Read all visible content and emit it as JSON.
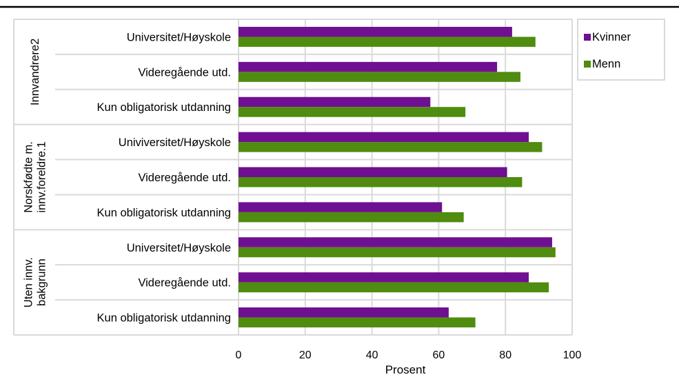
{
  "chart_data": {
    "type": "bar",
    "orientation": "horizontal",
    "title": "",
    "xlabel": "Prosent",
    "ylabel": "",
    "xlim": [
      0,
      100
    ],
    "x_ticks": [
      "0",
      "20",
      "40",
      "60",
      "80",
      "100"
    ],
    "grid": true,
    "legend_position": "top-right",
    "groups": [
      {
        "label": "Innvandrere2",
        "categories": [
          "Universitet/Høyskole",
          "Videregående utd.",
          "Kun obligatorisk utdanning"
        ]
      },
      {
        "label": "Norskfødte m. innv.foreldre.1",
        "label_lines": [
          "Norskfødte m.",
          "innv.foreldre.1"
        ],
        "categories": [
          "Univiversitet/Høyskole",
          "Videregående utd.",
          "Kun obligatorisk utdanning"
        ]
      },
      {
        "label": "Uten innv. bakgrunn",
        "label_lines": [
          "Uten innv.",
          "bakgrunn"
        ],
        "categories": [
          "Universitet/Høyskole",
          "Videregående utd.",
          "Kun obligatorisk utdanning"
        ]
      }
    ],
    "series": [
      {
        "name": "Kvinner",
        "color": "#6f0f92",
        "values": [
          [
            82,
            77.5,
            57.5
          ],
          [
            87,
            80.5,
            61
          ],
          [
            94,
            87,
            63
          ]
        ]
      },
      {
        "name": "Menn",
        "color": "#4f8c0f",
        "values": [
          [
            89,
            84.5,
            68
          ],
          [
            91,
            85,
            67.5
          ],
          [
            95,
            93,
            71
          ]
        ]
      }
    ]
  }
}
